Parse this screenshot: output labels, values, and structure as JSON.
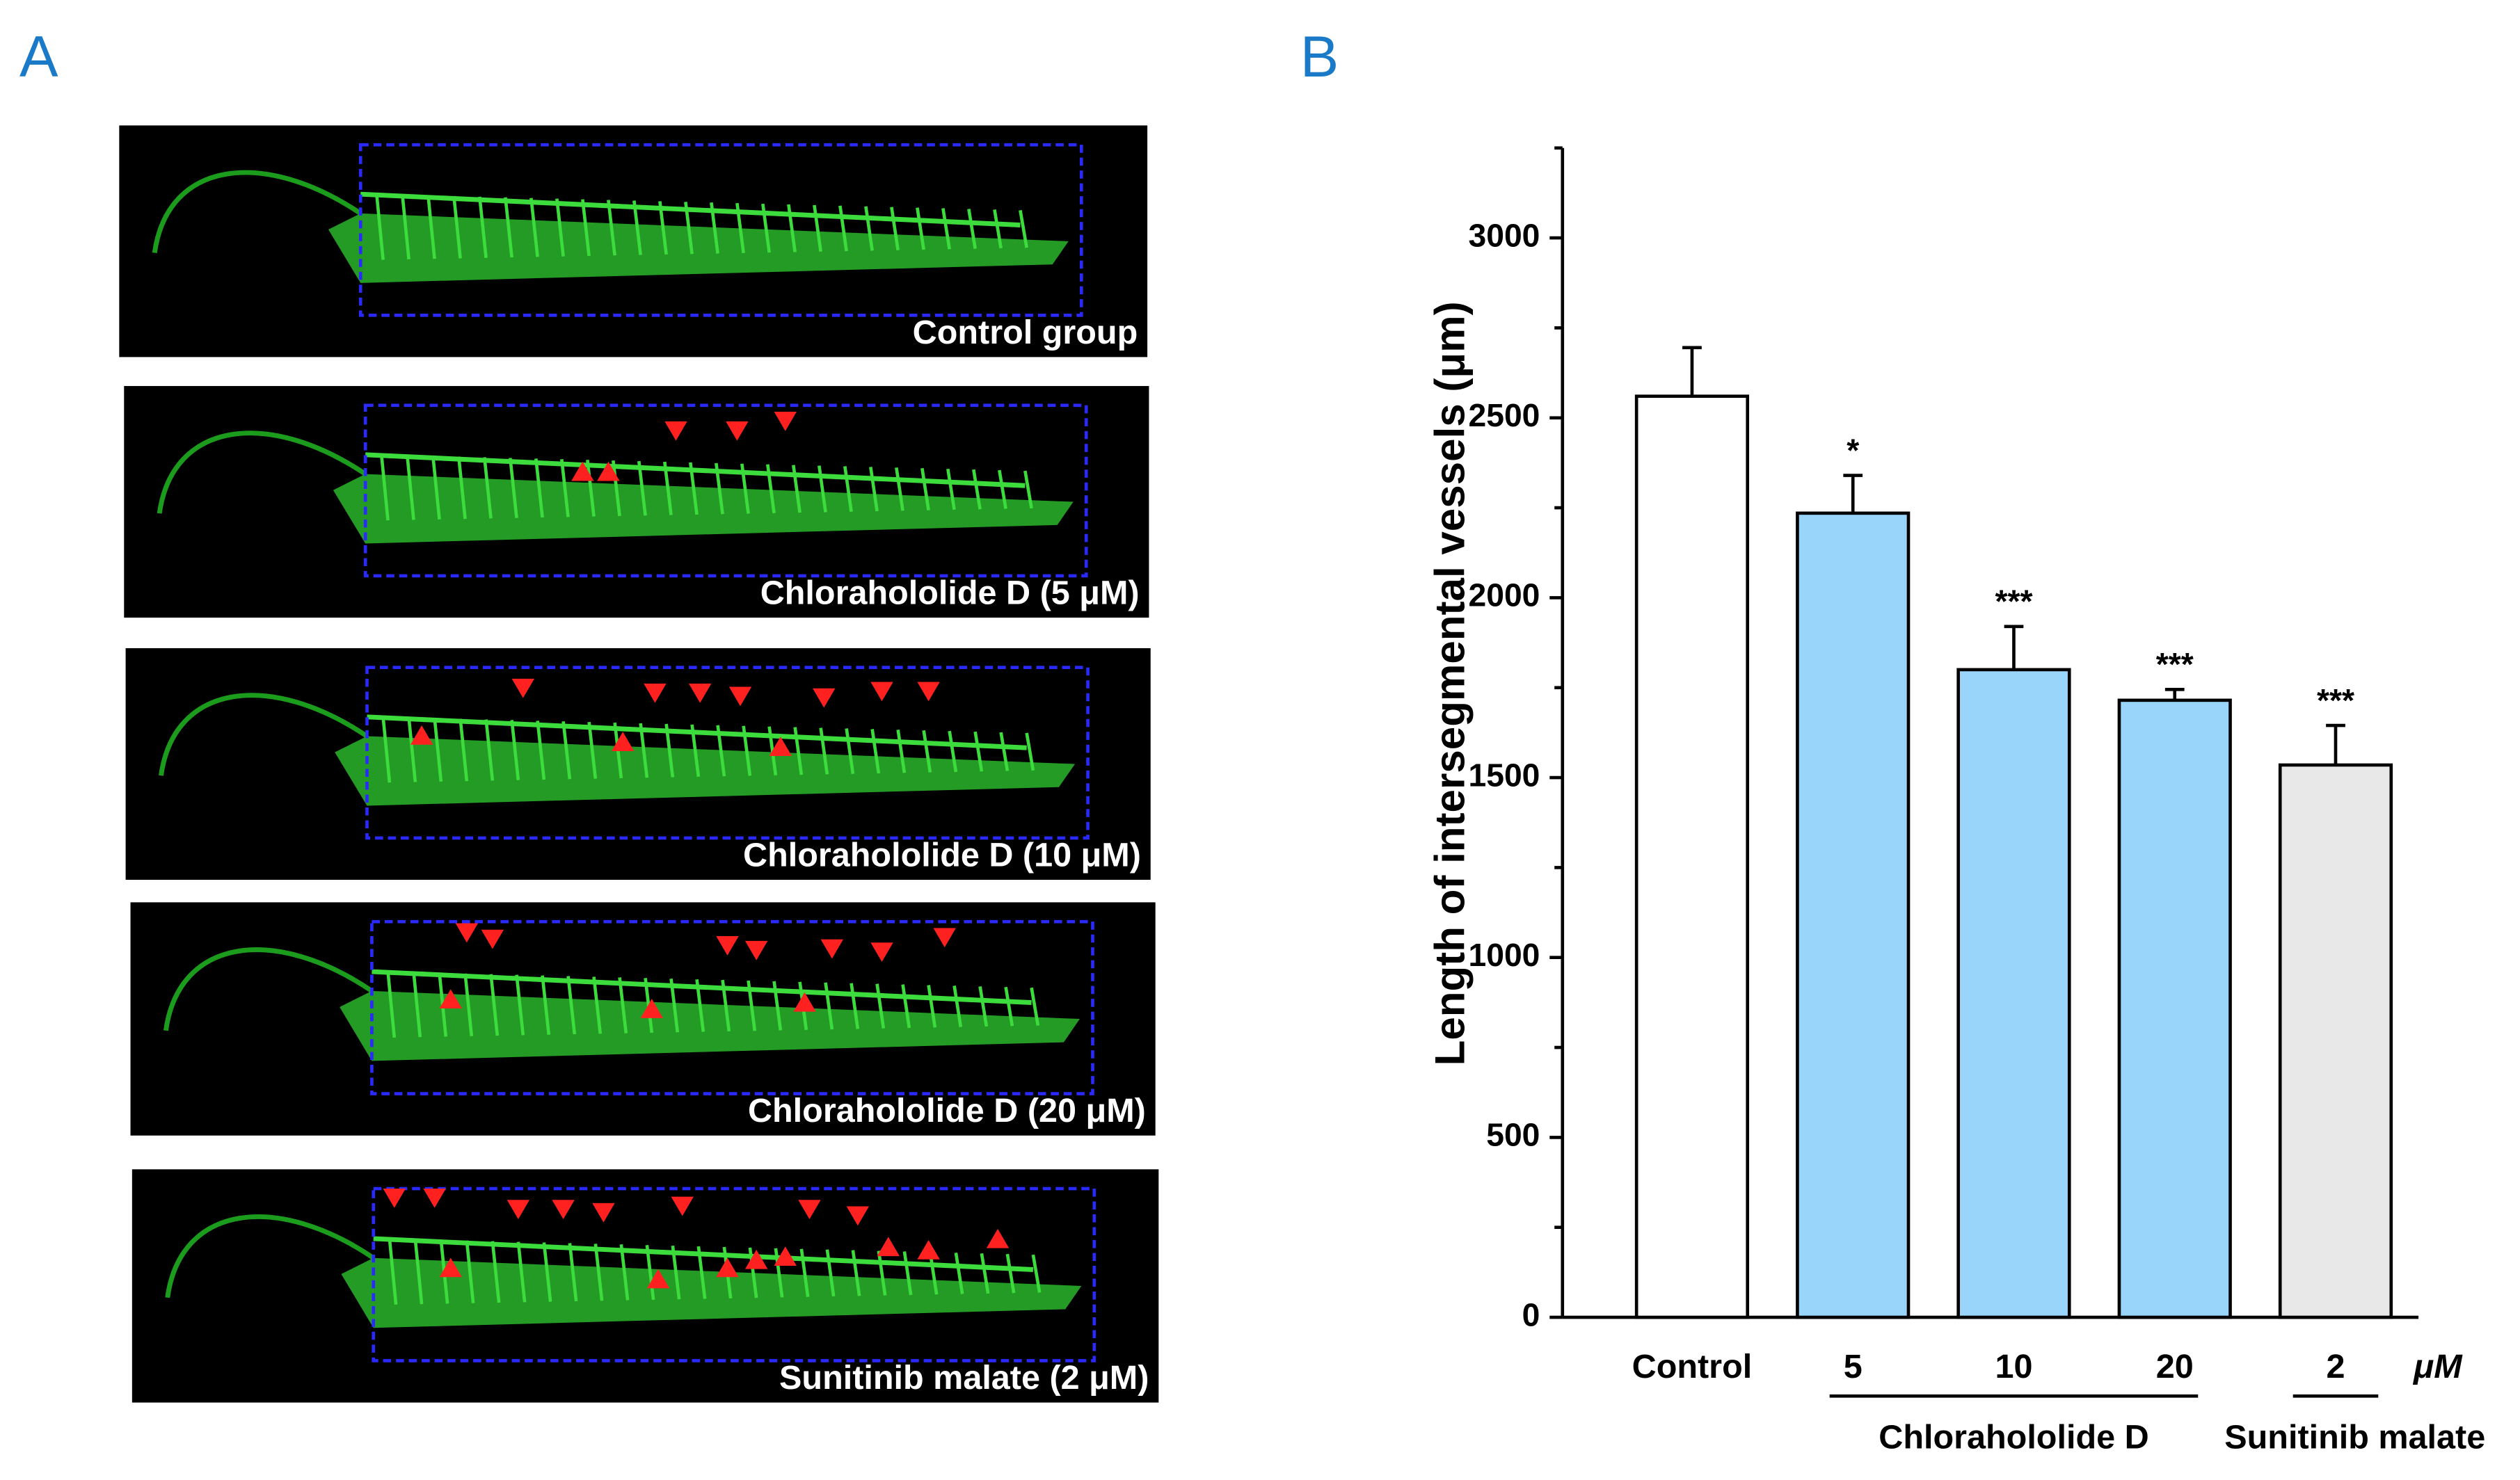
{
  "figure": {
    "panel_a": "A",
    "panel_b": "B",
    "images": [
      {
        "caption": "Control group"
      },
      {
        "caption": "Chlorahololide D (5 μM)"
      },
      {
        "caption": "Chlorahololide D (10 μM)"
      },
      {
        "caption": "Chlorahololide D (20 μM)"
      },
      {
        "caption": "Sunitinib malate (2 μM)"
      }
    ]
  },
  "chart_data": {
    "type": "bar",
    "y_label": "Length of intersegmental vessels (μm)",
    "x_unit": "μM",
    "categories": [
      "Control",
      "5",
      "10",
      "20",
      "2"
    ],
    "values": [
      2560,
      2235,
      1800,
      1715,
      1535
    ],
    "errors": [
      135,
      105,
      120,
      30,
      110
    ],
    "annotations": [
      null,
      "*",
      "***",
      "***",
      "***"
    ],
    "colors": [
      "#ffffff",
      "#99d4fa",
      "#99d4fa",
      "#99d4fa",
      "#e8e8e8"
    ],
    "groups": [
      {
        "name": "Chlorahololide D",
        "from": 1,
        "to": 3
      },
      {
        "name": "Sunitinib malate",
        "from": 4,
        "to": 4
      }
    ],
    "ylim": [
      0,
      3250
    ],
    "yticks": [
      0,
      500,
      1000,
      1500,
      2000,
      2500,
      3000
    ]
  }
}
